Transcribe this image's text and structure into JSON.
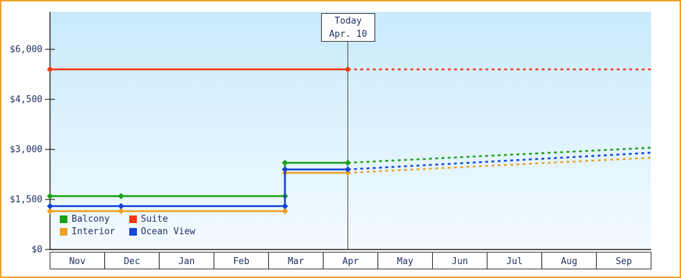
{
  "page": {
    "border_color": "#f59b22",
    "text_color": "#223060"
  },
  "today_box": {
    "line1": "Today",
    "line2": "Apr. 10"
  },
  "chart_data": {
    "type": "line",
    "title": "",
    "xlabel": "",
    "ylabel": "",
    "legend_position": "bottom-left-inside",
    "grid": false,
    "bg_top": "#c9eafc",
    "bg_bottom": "#f3fbff",
    "text_color": "#223060",
    "months": [
      "Nov",
      "Dec",
      "Jan",
      "Feb",
      "Mar",
      "Apr",
      "May",
      "Jun",
      "Jul",
      "Aug",
      "Sep"
    ],
    "y_ticks": [
      {
        "value": 0,
        "label": "$0"
      },
      {
        "value": 1500,
        "label": "$1,500"
      },
      {
        "value": 3000,
        "label": "$3,000"
      },
      {
        "value": 4500,
        "label": "$4,500"
      },
      {
        "value": 6000,
        "label": "$6,000"
      }
    ],
    "ylim": [
      0,
      7125
    ],
    "today_x": 5.45,
    "today_label": "Today Apr. 10",
    "series": [
      {
        "name": "Balcony",
        "color": "#18a018",
        "solid_points": [
          [
            0,
            1600
          ],
          [
            4.3,
            1600
          ],
          [
            4.3,
            2600
          ],
          [
            5.45,
            2600
          ]
        ],
        "markers": [
          [
            0,
            1600
          ],
          [
            1.3,
            1600
          ],
          [
            4.3,
            1600
          ],
          [
            4.3,
            2600
          ],
          [
            5.45,
            2600
          ]
        ],
        "forecast_points": [
          [
            5.45,
            2600
          ],
          [
            11,
            3050
          ]
        ]
      },
      {
        "name": "Suite",
        "color": "#f0390f",
        "solid_points": [
          [
            0,
            5400
          ],
          [
            5.45,
            5400
          ]
        ],
        "markers": [
          [
            0,
            5400
          ],
          [
            5.45,
            5400
          ]
        ],
        "forecast_points": [
          [
            5.45,
            5400
          ],
          [
            11,
            5400
          ]
        ]
      },
      {
        "name": "Interior",
        "color": "#eba128",
        "solid_points": [
          [
            0,
            1150
          ],
          [
            4.3,
            1150
          ],
          [
            4.3,
            2300
          ],
          [
            5.45,
            2300
          ]
        ],
        "markers": [
          [
            0,
            1150
          ],
          [
            1.3,
            1150
          ],
          [
            4.3,
            1150
          ],
          [
            4.3,
            2300
          ],
          [
            5.45,
            2300
          ]
        ],
        "forecast_points": [
          [
            5.45,
            2300
          ],
          [
            11,
            2750
          ]
        ]
      },
      {
        "name": "Ocean View",
        "color": "#1843d8",
        "solid_points": [
          [
            0,
            1300
          ],
          [
            4.3,
            1300
          ],
          [
            4.3,
            2400
          ],
          [
            5.45,
            2400
          ]
        ],
        "markers": [
          [
            0,
            1300
          ],
          [
            1.3,
            1300
          ],
          [
            4.3,
            1300
          ],
          [
            4.3,
            2400
          ],
          [
            5.45,
            2400
          ]
        ],
        "forecast_points": [
          [
            5.45,
            2400
          ],
          [
            11,
            2900
          ]
        ]
      }
    ]
  }
}
